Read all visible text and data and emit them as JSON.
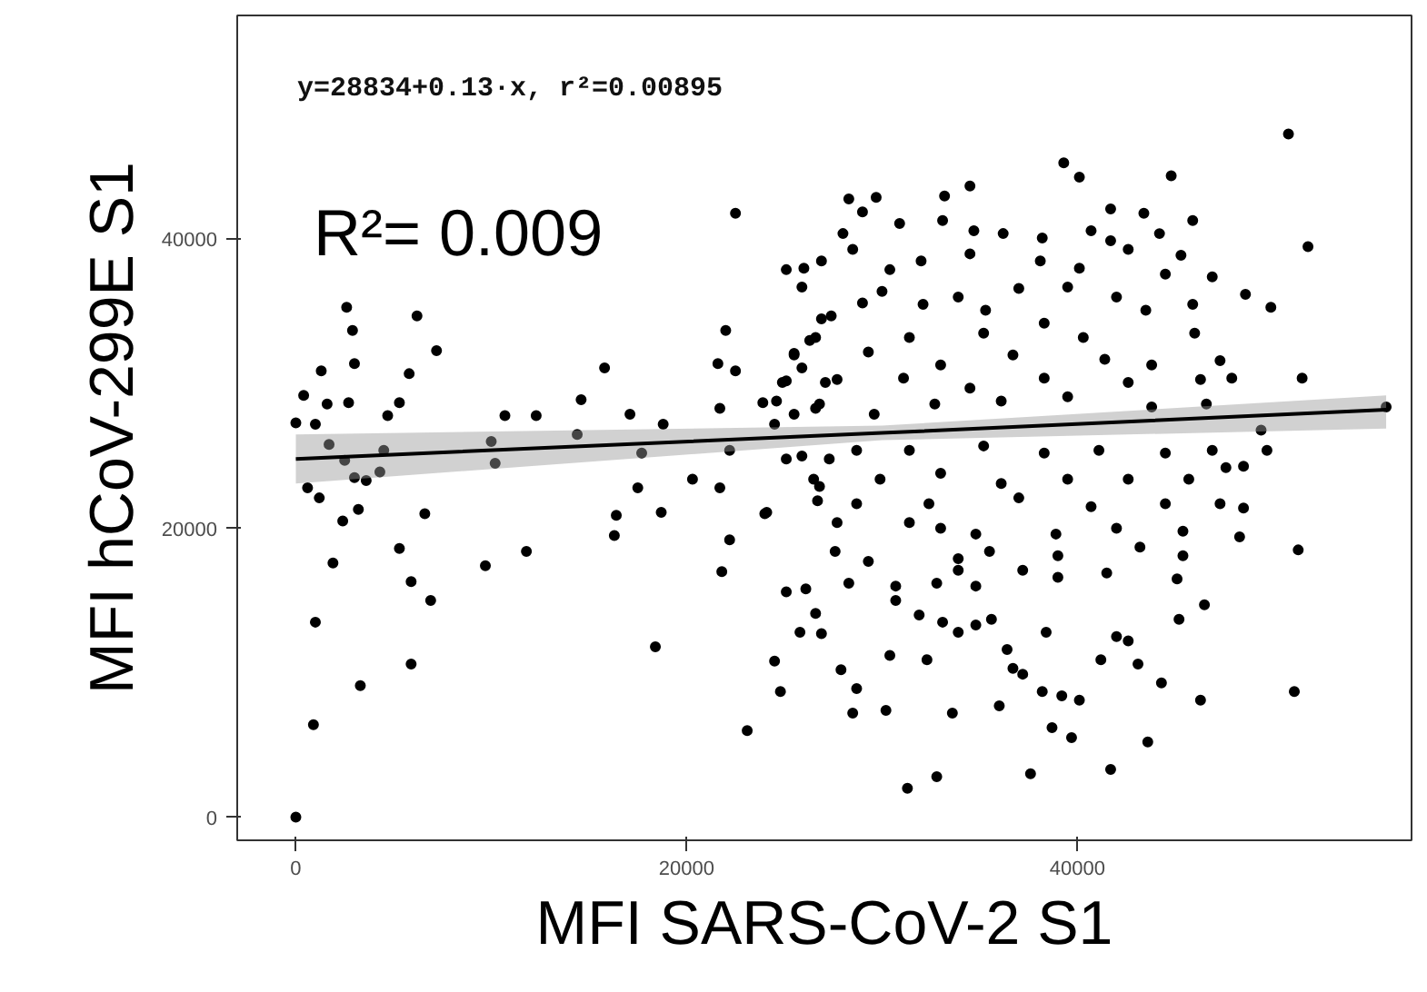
{
  "chart_data": {
    "type": "scatter",
    "xlabel": "MFI SARS-CoV-2 S1",
    "ylabel": "MFI hCoV-299E S1",
    "annotations": [
      "y=28834+0.13·x, r²=0.00895",
      "R²= 0.009"
    ],
    "xlim": [
      -3000,
      57100
    ],
    "ylim": [
      -1600,
      55500
    ],
    "xticks": [
      0,
      20000,
      40000
    ],
    "yticks": [
      0,
      20000,
      40000
    ],
    "grid": false,
    "marker": "circle",
    "series": [
      {
        "color": "#000000",
        "x": [
          0,
          900,
          1000,
          3300,
          1900,
          2400,
          600,
          1200,
          3200,
          3000,
          3600,
          4300,
          5300,
          5900,
          6900,
          5900,
          6600,
          0,
          400,
          1300,
          2600,
          2900,
          3000,
          1600,
          2700,
          1000,
          1700,
          2500,
          4500,
          4700,
          5300,
          5800,
          6200,
          7200,
          9700,
          10200,
          10000,
          10700,
          12300,
          11800,
          14600,
          15800,
          14400,
          16300,
          16400,
          17100,
          17500,
          17700,
          18400,
          18700,
          18800,
          20300,
          21700,
          21800,
          22200,
          21700,
          21600,
          22000,
          22500,
          22500,
          22200,
          23100,
          24100,
          24500,
          24800,
          25100,
          26100,
          25800,
          26900,
          26600,
          25100,
          26000,
          26900,
          25900,
          26900,
          25500,
          26300,
          25900,
          25100,
          27100,
          23900,
          24600,
          25500,
          26600,
          24500,
          25100,
          25900,
          26500,
          26700,
          27300,
          27600,
          50800,
          51800,
          51500,
          49400,
          49700,
          51300,
          51100,
          55800,
          39300,
          40100,
          44800,
          34500,
          33200,
          28300,
          29700,
          29000,
          30900,
          33100,
          34700,
          36200,
          38200,
          40700,
          41700,
          43400,
          44200,
          45900,
          28000,
          28500,
          41700,
          42600,
          45300,
          30400,
          32000,
          34500,
          38100,
          40100,
          44500,
          46900,
          48600,
          49900,
          27400,
          29000,
          30000,
          32100,
          33900,
          35300,
          37000,
          39500,
          42000,
          43500,
          45900,
          26600,
          31400,
          35200,
          38300,
          40300,
          46000,
          25500,
          29300,
          33000,
          36700,
          41400,
          43800,
          47300,
          24900,
          27700,
          31100,
          34500,
          38300,
          42600,
          46300,
          47900,
          26800,
          29600,
          32700,
          36100,
          39500,
          43800,
          46600,
          28700,
          31400,
          35200,
          38300,
          41100,
          44500,
          46900,
          47600,
          48500,
          26800,
          29900,
          33000,
          36100,
          39500,
          42600,
          45700,
          28700,
          32400,
          37000,
          40700,
          44500,
          47300,
          48500,
          24000,
          27700,
          31400,
          34800,
          38900,
          42000,
          45400,
          48300,
          29300,
          33000,
          33900,
          35500,
          39000,
          43200,
          45400,
          28300,
          30700,
          32800,
          33900,
          34800,
          37200,
          39000,
          41500,
          45100,
          46500,
          27900,
          28700,
          28500,
          30200,
          30400,
          30700,
          31900,
          32300,
          33100,
          33900,
          34800,
          35600,
          36400,
          36700,
          37200,
          33600,
          36000,
          38200,
          39200,
          38400,
          40100,
          38700,
          39700,
          41200,
          42000,
          42600,
          43100,
          44300,
          45200,
          46300,
          43600,
          41700,
          37600,
          32800,
          31300
        ],
        "values": [
          0,
          6400,
          13500,
          9100,
          17600,
          20500,
          22800,
          22100,
          21300,
          23500,
          23300,
          23900,
          18600,
          16300,
          15000,
          10600,
          21000,
          27300,
          29200,
          30900,
          35300,
          33700,
          31400,
          28600,
          28700,
          27200,
          25800,
          24700,
          25400,
          27800,
          28700,
          30700,
          34700,
          32300,
          17400,
          24500,
          26000,
          27800,
          27800,
          18400,
          28900,
          31100,
          26500,
          19500,
          20900,
          27900,
          22800,
          25200,
          11800,
          21100,
          27200,
          23400,
          22800,
          17000,
          19200,
          28300,
          31400,
          33700,
          41800,
          30900,
          25400,
          6000,
          21100,
          10800,
          8700,
          15600,
          15800,
          12800,
          12700,
          14100,
          37900,
          38000,
          38500,
          36700,
          34500,
          32100,
          33000,
          31100,
          30200,
          30100,
          28700,
          28800,
          27900,
          28300,
          27200,
          24800,
          25000,
          23400,
          21900,
          24800,
          18400,
          47300,
          39500,
          30400,
          26800,
          25400,
          18500,
          8700,
          28400,
          45300,
          44300,
          44400,
          43700,
          43000,
          42800,
          42900,
          41900,
          41100,
          41300,
          40600,
          40400,
          40100,
          40600,
          42100,
          41800,
          40400,
          41300,
          40400,
          39300,
          39900,
          39300,
          38900,
          37900,
          38500,
          39000,
          38500,
          38000,
          37600,
          37400,
          36200,
          35300,
          34700,
          35600,
          36400,
          35500,
          36000,
          35100,
          36600,
          36700,
          36000,
          35100,
          35500,
          33200,
          33200,
          33500,
          34200,
          33200,
          33500,
          32000,
          32200,
          31300,
          32000,
          31700,
          31300,
          31600,
          30100,
          30300,
          30400,
          29700,
          30400,
          30100,
          30300,
          30400,
          28600,
          27900,
          28600,
          28800,
          29100,
          28400,
          28600,
          25400,
          25400,
          25700,
          25200,
          25400,
          25200,
          25400,
          24200,
          24300,
          22900,
          23400,
          23800,
          23100,
          23400,
          23400,
          23400,
          21700,
          21700,
          22100,
          21500,
          21700,
          21700,
          21400,
          21000,
          20400,
          20400,
          19600,
          19600,
          20000,
          19800,
          19400,
          17700,
          20000,
          17900,
          18400,
          18100,
          18700,
          18100,
          16200,
          16000,
          16200,
          17100,
          16000,
          17100,
          16600,
          16900,
          16500,
          14700,
          10200,
          8900,
          7200,
          7400,
          11200,
          15000,
          14000,
          10900,
          13500,
          12800,
          13300,
          13700,
          11600,
          10300,
          9900,
          7200,
          7700,
          8700,
          8400,
          12800,
          8100,
          6200,
          5500,
          10900,
          12500,
          12200,
          10600,
          9300,
          13700,
          8100,
          5200,
          3300,
          3000,
          2800,
          2000
        ]
      },
      {
        "type": "line",
        "color": "#000000",
        "marker": "none",
        "line_style": "solid",
        "x": [
          0,
          30000,
          55800
        ],
        "values": [
          24800,
          26600,
          28200
        ],
        "lower": [
          23100,
          26100,
          26900
        ],
        "upper": [
          26500,
          27100,
          29200
        ]
      }
    ]
  }
}
